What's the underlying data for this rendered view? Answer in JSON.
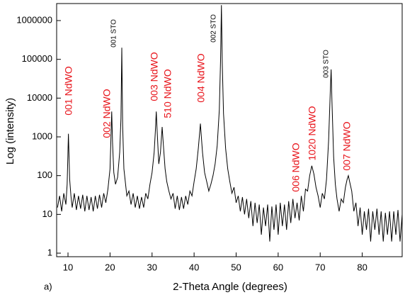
{
  "chart_data": {
    "type": "line",
    "log_y": true,
    "color": "#000000",
    "x_label": "2-Theta Angle (degrees)",
    "y_label": "Log (intensity)",
    "panel_label": "a)",
    "xlim": [
      7.3,
      89.5
    ],
    "xticks": [
      10,
      20,
      30,
      40,
      50,
      60,
      70,
      80
    ],
    "ylim": [
      0.81,
      2750000
    ],
    "yticks": [
      1,
      10,
      100,
      1000,
      10000,
      100000,
      1000000
    ],
    "annotations": [
      {
        "text": "001 NdWO",
        "color": "#e8141b"
      },
      {
        "text": "002 NdWO",
        "color": "#e8141b"
      },
      {
        "text": "001 STO",
        "color": "#000000"
      },
      {
        "text": "003 NdWO",
        "color": "#e8141b"
      },
      {
        "text": "510 NdWO",
        "color": "#e8141b"
      },
      {
        "text": "004 NdWO",
        "color": "#e8141b"
      },
      {
        "text": "002 STO",
        "color": "#000000"
      },
      {
        "text": "006 NdWO",
        "color": "#e8141b"
      },
      {
        "text": "1020 NdWO",
        "color": "#e8141b"
      },
      {
        "text": "003 STO",
        "color": "#000000"
      },
      {
        "text": "007 NdWO",
        "color": "#e8141b"
      }
    ],
    "x": [
      7.5,
      8,
      8.5,
      9,
      9.5,
      9.8,
      10.1,
      10.4,
      10.7,
      11,
      11.5,
      12,
      12.5,
      13,
      13.5,
      14,
      14.5,
      15,
      15.5,
      16,
      16.5,
      17,
      17.5,
      18,
      18.5,
      19,
      19.5,
      20,
      20.2,
      20.4,
      20.6,
      20.9,
      21.3,
      21.8,
      22.3,
      22.6,
      22.8,
      23,
      23.3,
      23.7,
      24,
      24.5,
      25,
      25.5,
      26,
      26.5,
      27,
      27.5,
      28,
      28.5,
      29,
      29.5,
      30,
      30.5,
      30.8,
      31,
      31.2,
      31.6,
      32,
      32.4,
      32.7,
      33.1,
      33.5,
      34,
      34.5,
      35,
      35.5,
      36,
      36.5,
      37,
      37.5,
      38,
      38.5,
      39,
      39.5,
      40,
      40.5,
      41,
      41.3,
      41.5,
      41.7,
      42,
      42.5,
      43,
      43.5,
      44,
      44.5,
      45,
      45.5,
      46,
      46.3,
      46.5,
      46.7,
      47,
      47.5,
      48,
      48.5,
      49,
      49.5,
      50,
      50.5,
      51,
      51.5,
      52,
      52.5,
      53,
      53.5,
      54,
      54.5,
      55,
      55.5,
      56,
      56.5,
      57,
      57.5,
      58,
      58.5,
      59,
      59.5,
      60,
      60.5,
      61,
      61.5,
      62,
      62.5,
      63,
      63.5,
      64,
      64.5,
      65,
      65.5,
      66,
      66.5,
      67,
      67.5,
      68,
      68.5,
      69,
      69.5,
      70,
      70.5,
      71,
      71.5,
      72,
      72.4,
      72.6,
      72.8,
      73.2,
      73.6,
      74,
      74.5,
      75,
      75.5,
      76,
      76.4,
      76.7,
      77,
      77.5,
      78,
      78.5,
      79,
      79.5,
      80,
      80.5,
      81,
      81.5,
      82,
      82.5,
      83,
      83.5,
      84,
      84.5,
      85,
      85.5,
      86,
      86.5,
      87,
      87.5,
      88,
      88.5,
      89,
      89.5
    ],
    "values": [
      15,
      30,
      12,
      35,
      18,
      60,
      1200,
      80,
      30,
      15,
      35,
      13,
      30,
      14,
      32,
      12,
      30,
      13,
      28,
      12,
      30,
      14,
      32,
      15,
      35,
      20,
      45,
      150,
      800,
      4500,
      700,
      120,
      60,
      90,
      400,
      3000,
      200000,
      2000,
      150,
      60,
      30,
      40,
      18,
      35,
      15,
      30,
      14,
      28,
      15,
      35,
      25,
      60,
      120,
      400,
      1500,
      4500,
      1500,
      200,
      400,
      1800,
      600,
      150,
      70,
      40,
      25,
      35,
      14,
      30,
      13,
      28,
      14,
      30,
      18,
      40,
      30,
      70,
      150,
      500,
      1200,
      2200,
      1100,
      400,
      120,
      70,
      40,
      60,
      100,
      200,
      600,
      5000,
      100000,
      2500000,
      80000,
      4000,
      500,
      150,
      70,
      35,
      50,
      20,
      30,
      12,
      28,
      10,
      25,
      8,
      22,
      5,
      20,
      6,
      18,
      3,
      15,
      5,
      18,
      2,
      16,
      4,
      18,
      3,
      20,
      5,
      18,
      4,
      22,
      6,
      25,
      8,
      20,
      7,
      30,
      12,
      45,
      40,
      100,
      180,
      110,
      50,
      30,
      15,
      35,
      25,
      80,
      800,
      15000,
      55000,
      8000,
      300,
      60,
      25,
      12,
      25,
      20,
      50,
      80,
      100,
      70,
      40,
      12,
      20,
      5,
      15,
      3,
      12,
      4,
      14,
      2,
      12,
      4,
      14,
      3,
      12,
      2,
      11,
      3,
      12,
      2,
      12,
      3,
      13,
      2,
      10
    ]
  }
}
